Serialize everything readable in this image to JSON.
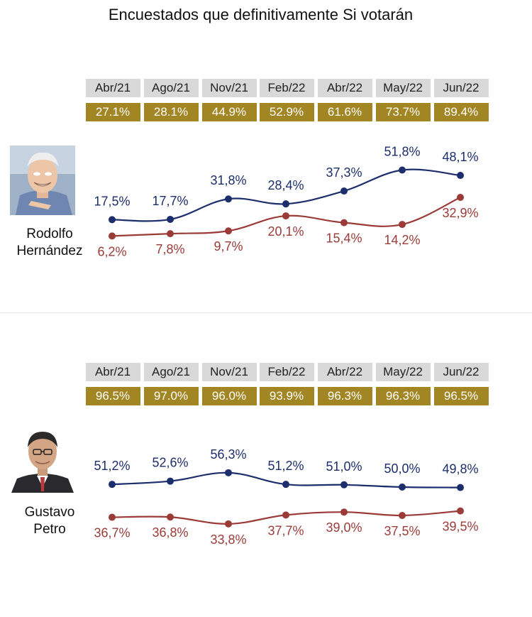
{
  "title": "Encuestados que definitivamente Si votarán",
  "colors": {
    "series_blue": "#1c2e6b",
    "series_red": "#9a3b38",
    "month_bg": "#d9d9d9",
    "pct_bg": "#a38624"
  },
  "chart_data": [
    {
      "type": "line",
      "candidate": [
        "Rodolfo",
        "Hernández"
      ],
      "categories": [
        "Abr/21",
        "Ago/21",
        "Nov/21",
        "Feb/22",
        "Abr/22",
        "May/22",
        "Jun/22"
      ],
      "totals": [
        "27.1%",
        "28.1%",
        "44.9%",
        "52.9%",
        "61.6%",
        "73.7%",
        "89.4%"
      ],
      "series": [
        {
          "values": [
            17.5,
            17.7,
            31.8,
            28.4,
            37.3,
            51.8,
            48.1
          ],
          "labels": [
            "17,5%",
            "17,7%",
            "31,8%",
            "28,4%",
            "37,3%",
            "51,8%",
            "48,1%"
          ],
          "color": "#1c2e6b",
          "label_position": "above"
        },
        {
          "values": [
            6.2,
            7.8,
            9.7,
            20.1,
            15.4,
            14.2,
            32.9
          ],
          "labels": [
            "6,2%",
            "7,8%",
            "9,7%",
            "20,1%",
            "15,4%",
            "14,2%",
            "32,9%"
          ],
          "color": "#9a3b38",
          "label_position": "below"
        }
      ]
    },
    {
      "type": "line",
      "candidate": [
        "Gustavo",
        "Petro"
      ],
      "categories": [
        "Abr/21",
        "Ago/21",
        "Nov/21",
        "Feb/22",
        "Abr/22",
        "May/22",
        "Jun/22"
      ],
      "totals": [
        "96.5%",
        "97.0%",
        "96.0%",
        "93.9%",
        "96.3%",
        "96.3%",
        "96.5%"
      ],
      "series": [
        {
          "values": [
            51.2,
            52.6,
            56.3,
            51.2,
            51.0,
            50.0,
            49.8
          ],
          "labels": [
            "51,2%",
            "52,6%",
            "56,3%",
            "51,2%",
            "51,0%",
            "50,0%",
            "49,8%"
          ],
          "color": "#1c2e6b",
          "label_position": "above"
        },
        {
          "values": [
            36.7,
            36.8,
            33.8,
            37.7,
            39.0,
            37.5,
            39.5
          ],
          "labels": [
            "36,7%",
            "36,8%",
            "33,8%",
            "37,7%",
            "39,0%",
            "37,5%",
            "39,5%"
          ],
          "color": "#9a3b38",
          "label_position": "below"
        }
      ]
    }
  ]
}
